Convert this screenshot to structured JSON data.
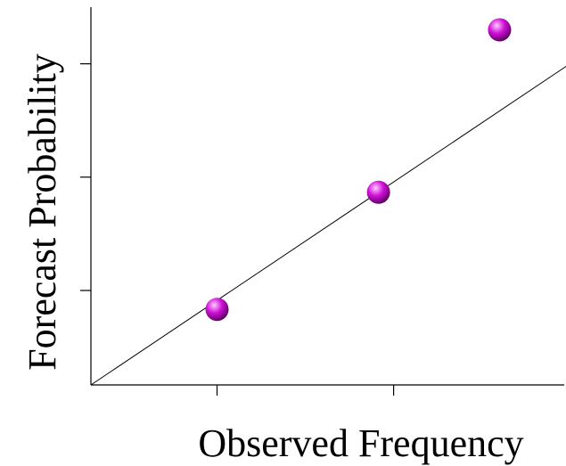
{
  "chart_data": {
    "type": "scatter",
    "xlabel": "Observed Frequency",
    "ylabel": "Forecast Probability",
    "xlim": [
      0,
      1
    ],
    "ylim": [
      0,
      1
    ],
    "x_ticks": [
      0.25,
      0.6,
      0.97
    ],
    "y_ticks": [
      0.25,
      0.55,
      0.85
    ],
    "grid": false,
    "reference_line": {
      "from": [
        0,
        0
      ],
      "to": [
        1.05,
        0.94
      ]
    },
    "series": [
      {
        "points": [
          {
            "x": 0.25,
            "y": 0.2
          },
          {
            "x": 0.57,
            "y": 0.51
          },
          {
            "x": 0.81,
            "y": 0.94
          }
        ],
        "color": "#d010d8"
      }
    ],
    "colors": {
      "marker_light": "#ffccff",
      "marker_mid": "#d010d8",
      "marker_dark": "#4a004e",
      "axis": "#000000"
    }
  }
}
